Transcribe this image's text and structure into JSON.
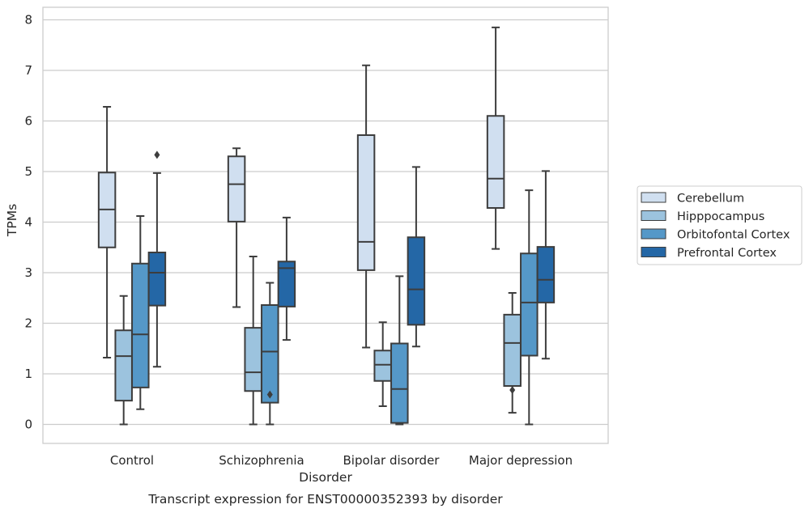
{
  "chart_data": {
    "type": "box",
    "title": "Transcript expression for ENST00000352393 by disorder",
    "xlabel": "Disorder",
    "ylabel": "TPMs",
    "ylim": [
      -0.38,
      8.22
    ],
    "yticks": [
      0,
      1,
      2,
      3,
      4,
      5,
      6,
      7,
      8
    ],
    "grid": "horizontal",
    "legend_position": "right",
    "categories": [
      "Control",
      "Schizophrenia",
      "Bipolar disorder",
      "Major depression"
    ],
    "series": [
      {
        "name": "Cerebellum",
        "color": "#d0dff0",
        "boxes": [
          {
            "whislo": 1.32,
            "q1": 3.5,
            "median": 4.25,
            "q3": 4.98,
            "whishi": 6.28,
            "fliers": []
          },
          {
            "whislo": 2.32,
            "q1": 4.01,
            "median": 4.75,
            "q3": 5.3,
            "whishi": 5.46,
            "fliers": []
          },
          {
            "whislo": 1.52,
            "q1": 3.05,
            "median": 3.61,
            "q3": 5.72,
            "whishi": 7.1,
            "fliers": []
          },
          {
            "whislo": 3.47,
            "q1": 4.28,
            "median": 4.86,
            "q3": 6.1,
            "whishi": 7.85,
            "fliers": []
          }
        ]
      },
      {
        "name": "Hipppocampus",
        "color": "#9cc3de",
        "boxes": [
          {
            "whislo": 0.0,
            "q1": 0.47,
            "median": 1.35,
            "q3": 1.86,
            "whishi": 2.54,
            "fliers": []
          },
          {
            "whislo": 0.0,
            "q1": 0.66,
            "median": 1.03,
            "q3": 1.91,
            "whishi": 3.32,
            "fliers": []
          },
          {
            "whislo": 0.36,
            "q1": 0.86,
            "median": 1.18,
            "q3": 1.46,
            "whishi": 2.02,
            "fliers": []
          },
          {
            "whislo": 0.23,
            "q1": 0.76,
            "median": 1.61,
            "q3": 2.17,
            "whishi": 2.6,
            "fliers": [
              0.68
            ]
          }
        ]
      },
      {
        "name": "Orbitofontal Cortex",
        "color": "#5598c8",
        "boxes": [
          {
            "whislo": 0.3,
            "q1": 0.73,
            "median": 1.78,
            "q3": 3.18,
            "whishi": 4.12,
            "fliers": []
          },
          {
            "whislo": 0.0,
            "q1": 0.43,
            "median": 1.44,
            "q3": 2.36,
            "whishi": 2.8,
            "fliers": [
              0.59
            ]
          },
          {
            "whislo": 0.0,
            "q1": 0.03,
            "median": 0.7,
            "q3": 1.6,
            "whishi": 2.93,
            "fliers": []
          },
          {
            "whislo": 0.0,
            "q1": 1.36,
            "median": 2.41,
            "q3": 3.38,
            "whishi": 4.63,
            "fliers": []
          }
        ]
      },
      {
        "name": "Prefrontal Cortex",
        "color": "#2467a6",
        "boxes": [
          {
            "whislo": 1.14,
            "q1": 2.35,
            "median": 3.0,
            "q3": 3.4,
            "whishi": 4.97,
            "fliers": [
              5.33
            ]
          },
          {
            "whislo": 1.67,
            "q1": 2.33,
            "median": 3.09,
            "q3": 3.22,
            "whishi": 4.09,
            "fliers": []
          },
          {
            "whislo": 1.54,
            "q1": 1.97,
            "median": 2.67,
            "q3": 3.7,
            "whishi": 5.09,
            "fliers": []
          },
          {
            "whislo": 1.3,
            "q1": 2.41,
            "median": 2.86,
            "q3": 3.51,
            "whishi": 5.01,
            "fliers": []
          }
        ]
      }
    ]
  }
}
